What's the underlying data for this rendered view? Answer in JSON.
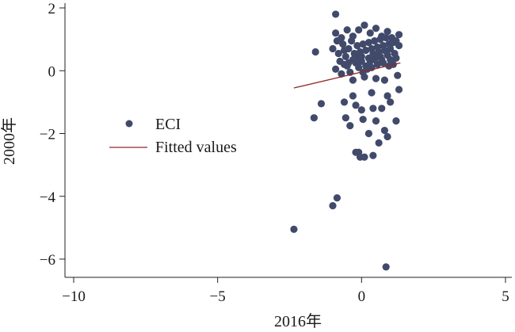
{
  "chart_data": {
    "type": "scatter",
    "xlabel": "2016年",
    "ylabel": "2000年",
    "xlim": [
      -10,
      5
    ],
    "ylim": [
      -6.5,
      2.2
    ],
    "x_ticks": [
      -10,
      -5,
      0,
      5
    ],
    "y_ticks": [
      2,
      0,
      -2,
      -4,
      -6
    ],
    "x_tick_labels": [
      "−10",
      "−5",
      "0",
      "5"
    ],
    "y_tick_labels": [
      "2",
      "0",
      "−2",
      "−4",
      "−6"
    ],
    "grid": false,
    "legend_position": "left-middle",
    "colors": {
      "points": "#414a6b",
      "fit_line": "#8b2a2a",
      "axis": "#222222"
    },
    "series": [
      {
        "name": "ECI",
        "type": "scatter",
        "points": [
          [
            -2.35,
            -5.05
          ],
          [
            -1.0,
            -4.3
          ],
          [
            -0.85,
            -4.05
          ],
          [
            0.85,
            -6.25
          ],
          [
            -1.6,
            0.6
          ],
          [
            -0.9,
            1.8
          ],
          [
            -1.4,
            -1.05
          ],
          [
            -1.65,
            -1.5
          ],
          [
            -0.2,
            -2.6
          ],
          [
            -0.1,
            -2.6
          ],
          [
            -0.05,
            -2.75
          ],
          [
            0.1,
            -2.75
          ],
          [
            0.4,
            -2.7
          ],
          [
            0.6,
            -2.3
          ],
          [
            0.8,
            -1.9
          ],
          [
            0.9,
            -2.1
          ],
          [
            1.2,
            -1.6
          ],
          [
            0.5,
            -1.6
          ],
          [
            0.25,
            -2.0
          ],
          [
            0.05,
            -1.55
          ],
          [
            -0.4,
            -1.75
          ],
          [
            -0.55,
            -1.5
          ],
          [
            -0.2,
            -1.1
          ],
          [
            0.0,
            -1.25
          ],
          [
            0.4,
            -1.2
          ],
          [
            0.7,
            -1.2
          ],
          [
            1.0,
            -1.0
          ],
          [
            1.3,
            -0.6
          ],
          [
            -0.6,
            -1.0
          ],
          [
            -0.3,
            -0.8
          ],
          [
            0.35,
            -0.7
          ],
          [
            0.9,
            -0.8
          ],
          [
            -0.3,
            -0.3
          ],
          [
            0.1,
            -0.2
          ],
          [
            0.5,
            -0.25
          ],
          [
            0.8,
            -0.3
          ],
          [
            1.1,
            0.2
          ],
          [
            1.25,
            -0.15
          ],
          [
            -0.9,
            0.05
          ],
          [
            -0.7,
            -0.1
          ],
          [
            -0.5,
            0.15
          ],
          [
            -0.4,
            -0.05
          ],
          [
            -0.2,
            0.25
          ],
          [
            -0.1,
            0.1
          ],
          [
            0.0,
            0.3
          ],
          [
            0.15,
            0.15
          ],
          [
            0.25,
            0.4
          ],
          [
            0.35,
            0.1
          ],
          [
            0.45,
            0.35
          ],
          [
            0.55,
            0.2
          ],
          [
            0.65,
            0.45
          ],
          [
            0.75,
            0.25
          ],
          [
            0.9,
            0.5
          ],
          [
            1.0,
            0.35
          ],
          [
            1.15,
            0.55
          ],
          [
            1.3,
            0.8
          ],
          [
            -1.0,
            0.7
          ],
          [
            -0.8,
            0.55
          ],
          [
            -0.65,
            0.85
          ],
          [
            -0.55,
            0.45
          ],
          [
            -0.45,
            0.7
          ],
          [
            -0.35,
            0.95
          ],
          [
            -0.25,
            0.55
          ],
          [
            -0.15,
            0.8
          ],
          [
            -0.05,
            0.6
          ],
          [
            0.05,
            0.85
          ],
          [
            0.15,
            0.65
          ],
          [
            0.25,
            0.9
          ],
          [
            0.35,
            0.7
          ],
          [
            0.45,
            0.95
          ],
          [
            0.55,
            0.75
          ],
          [
            0.65,
            1.0
          ],
          [
            0.75,
            0.8
          ],
          [
            0.85,
            1.05
          ],
          [
            0.95,
            0.85
          ],
          [
            1.05,
            1.05
          ],
          [
            1.2,
            0.95
          ],
          [
            1.3,
            1.15
          ],
          [
            -0.9,
            1.2
          ],
          [
            -0.7,
            1.05
          ],
          [
            -0.5,
            1.3
          ],
          [
            -0.3,
            1.1
          ],
          [
            -0.1,
            1.3
          ],
          [
            0.1,
            1.45
          ],
          [
            0.3,
            1.2
          ],
          [
            0.5,
            1.35
          ],
          [
            0.7,
            1.1
          ],
          [
            0.9,
            1.25
          ],
          [
            -0.75,
            0.3
          ],
          [
            -0.6,
            0.2
          ],
          [
            -0.3,
            0.35
          ],
          [
            0.0,
            0.45
          ],
          [
            0.2,
            0.05
          ],
          [
            0.4,
            0.55
          ],
          [
            0.6,
            0.6
          ],
          [
            0.8,
            0.65
          ],
          [
            1.0,
            0.7
          ],
          [
            1.2,
            0.4
          ],
          [
            -0.85,
            0.95
          ],
          [
            -0.45,
            0.25
          ],
          [
            0.05,
            -0.05
          ],
          [
            0.3,
            0.3
          ],
          [
            0.5,
            0.5
          ],
          [
            0.7,
            0.35
          ],
          [
            0.95,
            0.15
          ],
          [
            -0.15,
            0.4
          ],
          [
            -0.6,
            0.65
          ],
          [
            1.1,
            0.9
          ]
        ]
      },
      {
        "name": "Fitted values",
        "type": "line",
        "points": [
          [
            -2.35,
            -0.55
          ],
          [
            1.35,
            0.25
          ]
        ]
      }
    ],
    "legend": [
      {
        "label": "ECI",
        "kind": "marker"
      },
      {
        "label": "Fitted values",
        "kind": "line"
      }
    ]
  }
}
